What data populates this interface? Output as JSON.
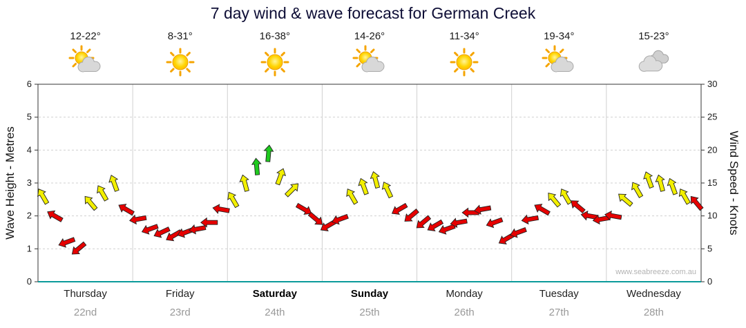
{
  "title": "7 day wind & wave forecast for German Creek",
  "watermark": "www.seabreeze.com.au",
  "axes": {
    "left_label": "Wave Height - Metres",
    "right_label": "Wind Speed - Knots",
    "left_ticks": [
      0,
      1,
      2,
      3,
      4,
      5,
      6
    ],
    "right_ticks": [
      0,
      5,
      10,
      15,
      20,
      25,
      30
    ]
  },
  "days": [
    {
      "name": "Thursday",
      "date": "22nd",
      "temp": "12-22°",
      "icon": "sun-cloud",
      "bold": false
    },
    {
      "name": "Friday",
      "date": "23rd",
      "temp": "8-31°",
      "icon": "sun",
      "bold": false
    },
    {
      "name": "Saturday",
      "date": "24th",
      "temp": "16-38°",
      "icon": "sun",
      "bold": true
    },
    {
      "name": "Sunday",
      "date": "25th",
      "temp": "14-26°",
      "icon": "sun-cloud",
      "bold": true
    },
    {
      "name": "Monday",
      "date": "26th",
      "temp": "11-34°",
      "icon": "sun",
      "bold": false
    },
    {
      "name": "Tuesday",
      "date": "27th",
      "temp": "19-34°",
      "icon": "sun-cloud",
      "bold": false
    },
    {
      "name": "Wednesday",
      "date": "28th",
      "temp": "15-23°",
      "icon": "cloudy",
      "bold": false
    }
  ],
  "chart_data": {
    "type": "wind-arrows",
    "title": "7 day wind & wave forecast for German Creek",
    "x_categories": [
      "Thursday",
      "Friday",
      "Saturday",
      "Sunday",
      "Monday",
      "Tuesday",
      "Wednesday"
    ],
    "points_per_day": 8,
    "ylim_metres": [
      0,
      6
    ],
    "ylim_knots": [
      0,
      30
    ],
    "grid": true,
    "palette": {
      "red": "#e60000",
      "yellow": "#f2ef00",
      "green": "#1fca1f"
    },
    "knots": [
      13,
      10,
      6,
      5,
      12,
      13.5,
      15,
      11,
      9.5,
      8,
      7.5,
      7,
      7.5,
      8,
      9,
      11,
      12.5,
      15,
      17.5,
      19.5,
      16,
      14,
      11,
      9.5,
      8.5,
      9.5,
      13,
      14.5,
      15.5,
      14,
      11,
      10,
      9,
      8.5,
      8,
      9,
      10.5,
      11,
      9,
      6.5,
      7.5,
      9.5,
      11,
      12.5,
      13,
      11.5,
      10,
      9.5,
      10,
      12.5,
      14,
      15.5,
      15,
      14.5,
      13,
      12
    ],
    "dir_deg": [
      330,
      300,
      250,
      230,
      320,
      330,
      340,
      300,
      260,
      250,
      245,
      240,
      250,
      260,
      270,
      280,
      330,
      345,
      355,
      5,
      20,
      45,
      120,
      130,
      240,
      250,
      330,
      340,
      345,
      335,
      240,
      230,
      230,
      240,
      250,
      260,
      270,
      260,
      250,
      240,
      250,
      260,
      300,
      320,
      330,
      310,
      280,
      260,
      280,
      310,
      330,
      340,
      345,
      340,
      330,
      320
    ],
    "color": [
      "yellow",
      "red",
      "red",
      "red",
      "yellow",
      "yellow",
      "yellow",
      "red",
      "red",
      "red",
      "red",
      "red",
      "red",
      "red",
      "red",
      "red",
      "yellow",
      "yellow",
      "green",
      "green",
      "yellow",
      "yellow",
      "red",
      "red",
      "red",
      "red",
      "yellow",
      "yellow",
      "yellow",
      "yellow",
      "red",
      "red",
      "red",
      "red",
      "red",
      "red",
      "red",
      "red",
      "red",
      "red",
      "red",
      "red",
      "red",
      "yellow",
      "yellow",
      "red",
      "red",
      "red",
      "red",
      "yellow",
      "yellow",
      "yellow",
      "yellow",
      "yellow",
      "yellow",
      "red"
    ]
  }
}
